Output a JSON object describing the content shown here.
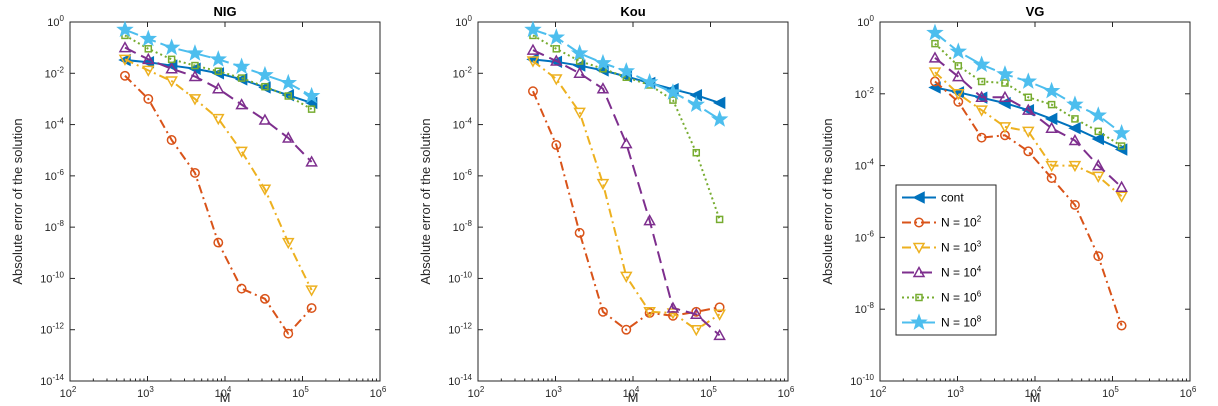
{
  "chart_data": [
    {
      "type": "line",
      "title": "NIG",
      "xlabel": "M",
      "ylabel": "Absolute error of the solution",
      "xscale": "log",
      "yscale": "log",
      "xlim": [
        100,
        1000000
      ],
      "ylim": [
        1e-14,
        1
      ],
      "grid": false,
      "x": [
        512,
        1024,
        2048,
        4096,
        8192,
        16384,
        32768,
        65536,
        131072
      ],
      "series": [
        {
          "name": "cont",
          "values": [
            0.033,
            0.027,
            0.02,
            0.015,
            0.01,
            0.0058,
            0.0028,
            0.0014,
            0.0007
          ]
        },
        {
          "name": "N = 10^2",
          "values": [
            0.008,
            0.001,
            2.5e-05,
            1.3e-06,
            2.5e-09,
            4e-11,
            1.6e-11,
            7e-13,
            7e-12
          ]
        },
        {
          "name": "N = 10^3",
          "values": [
            0.035,
            0.013,
            0.005,
            0.001,
            0.00017,
            9e-06,
            3e-07,
            2.5e-09,
            3.5e-11
          ]
        },
        {
          "name": "N = 10^4",
          "values": [
            0.1,
            0.035,
            0.015,
            0.0075,
            0.0025,
            0.0006,
            0.00015,
            3e-05,
            3.5e-06
          ]
        },
        {
          "name": "N = 10^6",
          "values": [
            0.3,
            0.09,
            0.035,
            0.02,
            0.012,
            0.0065,
            0.003,
            0.0013,
            0.0004
          ]
        },
        {
          "name": "N = 10^8",
          "values": [
            0.5,
            0.22,
            0.1,
            0.06,
            0.035,
            0.018,
            0.0085,
            0.0042,
            0.0013
          ]
        }
      ]
    },
    {
      "type": "line",
      "title": "Kou",
      "xlabel": "M",
      "ylabel": "Absolute error of the solution",
      "xscale": "log",
      "yscale": "log",
      "xlim": [
        100,
        1000000
      ],
      "ylim": [
        1e-14,
        1
      ],
      "grid": false,
      "x": [
        512,
        1024,
        2048,
        4096,
        8192,
        16384,
        32768,
        65536,
        131072
      ],
      "series": [
        {
          "name": "cont",
          "values": [
            0.035,
            0.028,
            0.02,
            0.013,
            0.0075,
            0.0042,
            0.0024,
            0.0014,
            0.0007
          ]
        },
        {
          "name": "N = 10^2",
          "values": [
            0.002,
            1.6e-05,
            6e-09,
            5e-12,
            1e-12,
            4.5e-12,
            3.5e-12,
            5e-12,
            7.5e-12
          ]
        },
        {
          "name": "N = 10^3",
          "values": [
            0.03,
            0.006,
            0.0003,
            5e-07,
            1.2e-10,
            5e-12,
            4.5e-12,
            1e-12,
            4e-12
          ]
        },
        {
          "name": "N = 10^4",
          "values": [
            0.08,
            0.03,
            0.01,
            0.0025,
            1.8e-05,
            1.8e-08,
            7e-12,
            4e-12,
            6e-13
          ]
        },
        {
          "name": "N = 10^6",
          "values": [
            0.3,
            0.09,
            0.03,
            0.015,
            0.007,
            0.0035,
            0.0009,
            8e-06,
            2e-08
          ]
        },
        {
          "name": "N = 10^8",
          "values": [
            0.5,
            0.25,
            0.06,
            0.025,
            0.012,
            0.0045,
            0.0018,
            0.0006,
            0.00016
          ]
        }
      ]
    },
    {
      "type": "line",
      "title": "VG",
      "xlabel": "M",
      "ylabel": "Absolute error of the solution",
      "xscale": "log",
      "yscale": "log",
      "xlim": [
        100,
        1000000
      ],
      "ylim": [
        1e-10,
        1
      ],
      "grid": false,
      "legend_location": "left",
      "x": [
        512,
        1024,
        2048,
        4096,
        8192,
        16384,
        32768,
        65536,
        131072
      ],
      "series": [
        {
          "name": "cont",
          "values": [
            0.015,
            0.011,
            0.0078,
            0.0055,
            0.0035,
            0.002,
            0.0011,
            0.00055,
            0.00028
          ]
        },
        {
          "name": "N = 10^2",
          "values": [
            0.022,
            0.006,
            0.0006,
            0.0007,
            0.00025,
            4.5e-05,
            8e-06,
            3e-07,
            3.5e-09
          ]
        },
        {
          "name": "N = 10^3",
          "values": [
            0.04,
            0.01,
            0.0035,
            0.0012,
            0.0009,
            0.0001,
            0.0001,
            5e-05,
            1.4e-05
          ]
        },
        {
          "name": "N = 10^4",
          "values": [
            0.1,
            0.03,
            0.008,
            0.008,
            0.0035,
            0.0011,
            0.0005,
            0.0001,
            2.5e-05
          ]
        },
        {
          "name": "N = 10^6",
          "values": [
            0.25,
            0.06,
            0.022,
            0.02,
            0.008,
            0.005,
            0.002,
            0.0009,
            0.00035
          ]
        },
        {
          "name": "N = 10^8",
          "values": [
            0.5,
            0.15,
            0.065,
            0.035,
            0.022,
            0.012,
            0.005,
            0.0025,
            0.0008
          ]
        }
      ]
    }
  ],
  "legend": [
    {
      "series": "cont",
      "label": "cont",
      "label_base": "",
      "label_exp": ""
    },
    {
      "series": "N = 10^2",
      "label": "N = 10^2",
      "label_base": "N = 10",
      "label_exp": "2"
    },
    {
      "series": "N = 10^3",
      "label": "N = 10^3",
      "label_base": "N = 10",
      "label_exp": "3"
    },
    {
      "series": "N = 10^4",
      "label": "N = 10^4",
      "label_base": "N = 10",
      "label_exp": "4"
    },
    {
      "series": "N = 10^6",
      "label": "N = 10^6",
      "label_base": "N = 10",
      "label_exp": "6"
    },
    {
      "series": "N = 10^8",
      "label": "N = 10^8",
      "label_base": "N = 10",
      "label_exp": "8"
    }
  ],
  "styles": {
    "cont": {
      "color": "#0072BD",
      "marker": "triangle-left",
      "dash": ""
    },
    "N = 10^2": {
      "color": "#D95319",
      "marker": "circle",
      "dash": "9,4,2,4"
    },
    "N = 10^3": {
      "color": "#EDB120",
      "marker": "triangle-down",
      "dash": "9,4,2,4"
    },
    "N = 10^4": {
      "color": "#7E2F8E",
      "marker": "triangle-up",
      "dash": "12,6"
    },
    "N = 10^6": {
      "color": "#77AC30",
      "marker": "square",
      "dash": "2,3"
    },
    "N = 10^8": {
      "color": "#4DBEEE",
      "marker": "star",
      "dash": "14,5"
    }
  }
}
